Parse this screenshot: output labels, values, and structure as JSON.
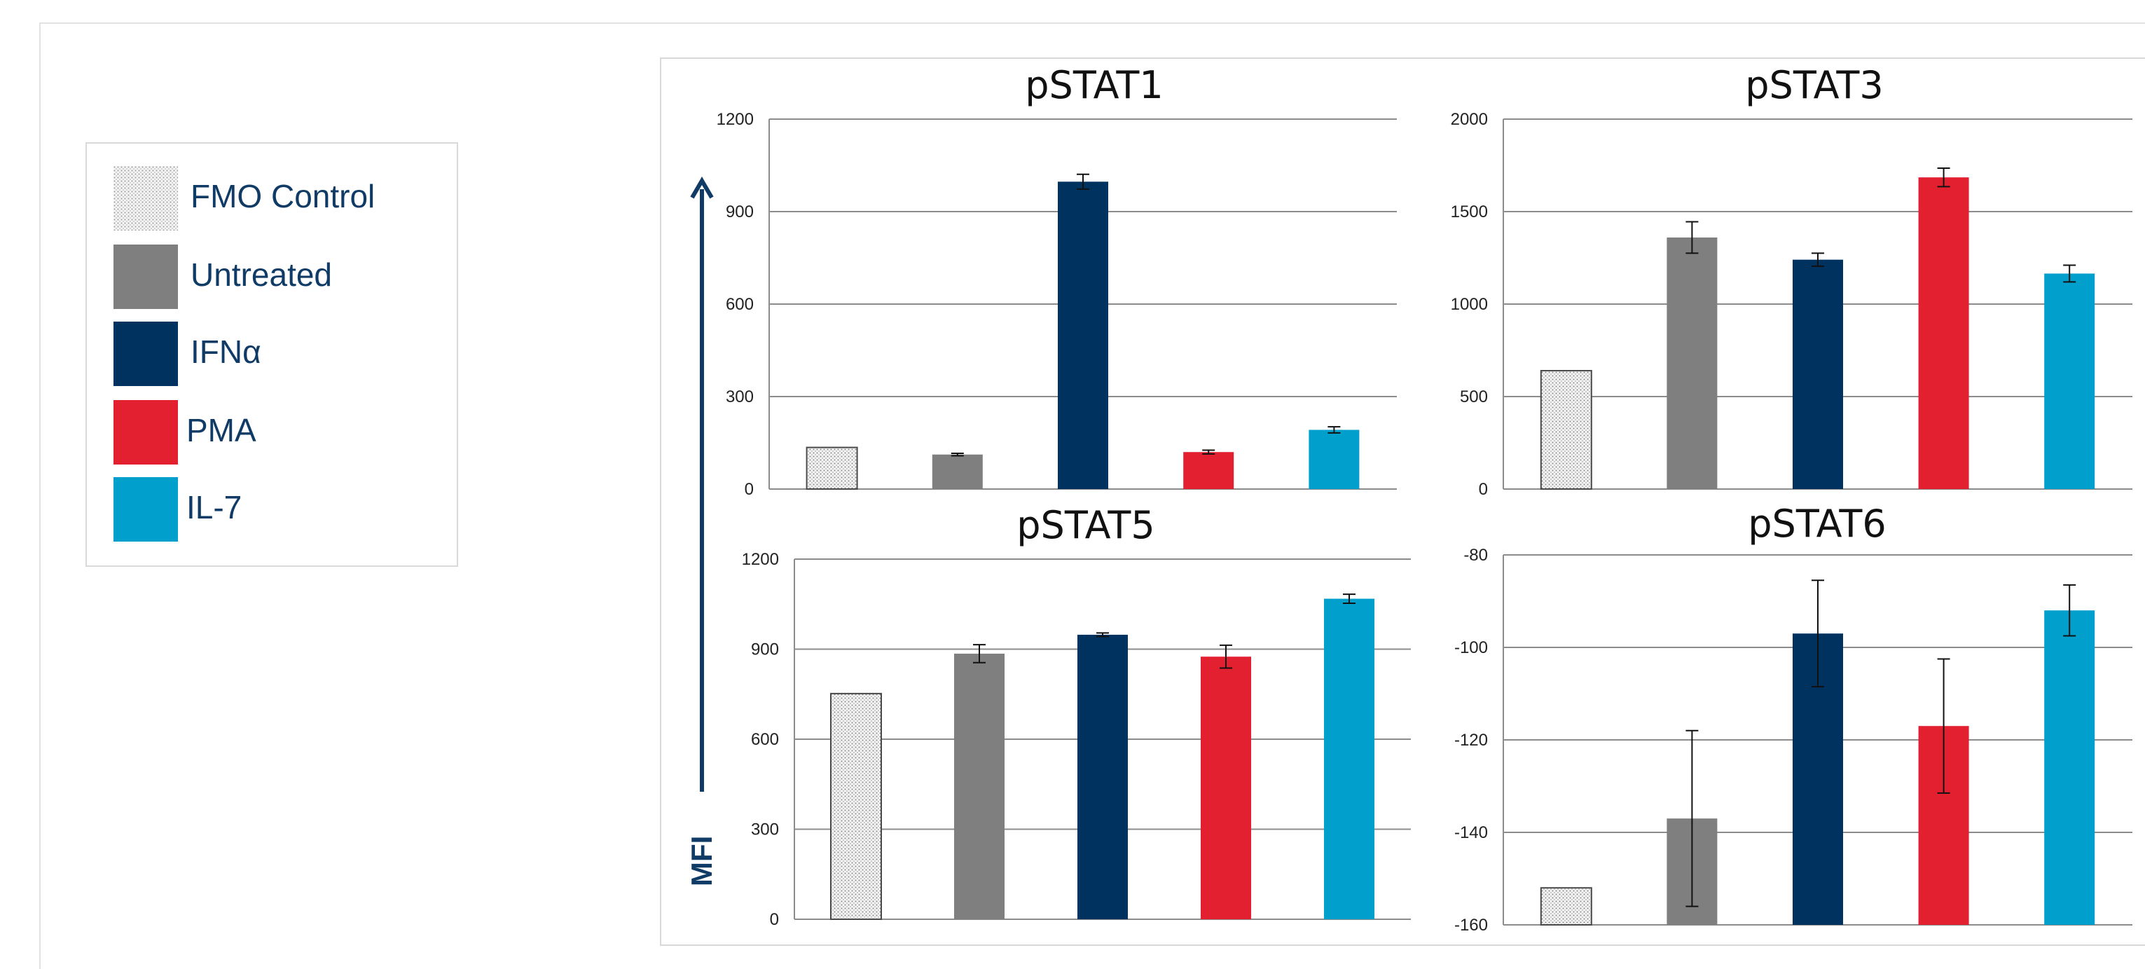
{
  "legend": {
    "items": [
      {
        "label": "FMO Control",
        "color": "#e6e6e6",
        "pattern": "dots"
      },
      {
        "label": "Untreated",
        "color": "#7f7f7f"
      },
      {
        "label": "IFNα",
        "color": "#00325f"
      },
      {
        "label": "PMA",
        "color": "#e3202f"
      },
      {
        "label": "IL-7",
        "color": "#009fcc"
      }
    ]
  },
  "axis_label": "MFI",
  "chart_data": [
    {
      "type": "bar",
      "title": "pSTAT1",
      "categories": [
        "FMO Control",
        "Untreated",
        "IFNα",
        "PMA",
        "IL-7"
      ],
      "values": [
        135,
        112,
        997,
        120,
        192
      ],
      "errors": [
        0,
        4,
        24,
        6,
        10
      ],
      "ylim": [
        0,
        1200
      ],
      "yticks": [
        0,
        300,
        600,
        900,
        1200
      ],
      "grid": true
    },
    {
      "type": "bar",
      "title": "pSTAT3",
      "categories": [
        "FMO Control",
        "Untreated",
        "IFNα",
        "PMA",
        "IL-7"
      ],
      "values": [
        640,
        1360,
        1240,
        1685,
        1165
      ],
      "errors": [
        0,
        85,
        35,
        50,
        45
      ],
      "ylim": [
        0,
        2000
      ],
      "yticks": [
        0,
        500,
        1000,
        1500,
        2000
      ],
      "grid": true
    },
    {
      "type": "bar",
      "title": "pSTAT5",
      "categories": [
        "FMO Control",
        "Untreated",
        "IFNα",
        "PMA",
        "IL-7"
      ],
      "values": [
        752,
        885,
        948,
        875,
        1068
      ],
      "errors": [
        0,
        30,
        6,
        38,
        15
      ],
      "ylim": [
        0,
        1200
      ],
      "yticks": [
        0,
        300,
        600,
        900,
        1200
      ],
      "grid": true
    },
    {
      "type": "bar",
      "title": "pSTAT6",
      "categories": [
        "FMO Control",
        "Untreated",
        "IFNα",
        "PMA",
        "IL-7"
      ],
      "values": [
        -152,
        -137,
        -97,
        -117,
        -92
      ],
      "errors": [
        0,
        19,
        11.5,
        14.5,
        5.5
      ],
      "ylim": [
        -160,
        -80
      ],
      "yticks": [
        -160,
        -140,
        -120,
        -100,
        -80
      ],
      "grid": true
    }
  ]
}
